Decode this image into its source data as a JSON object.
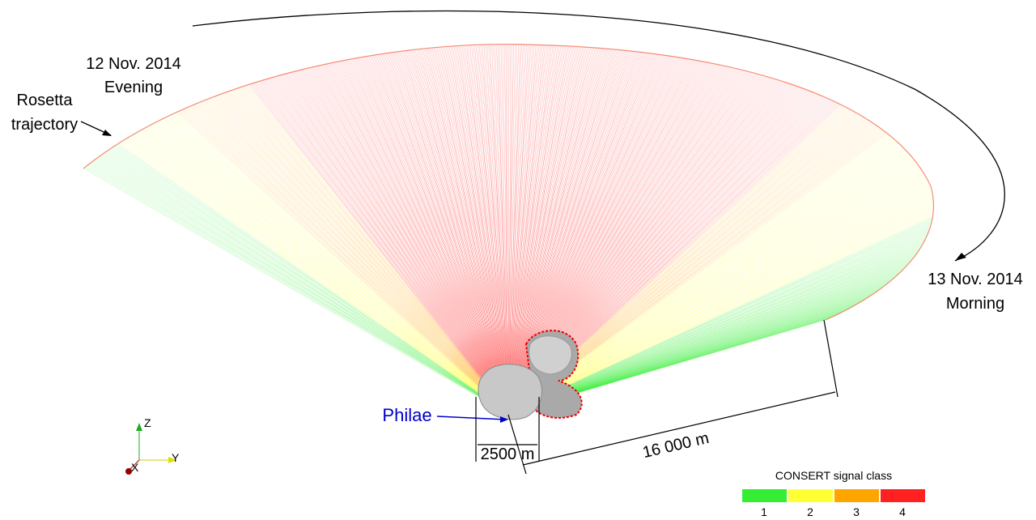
{
  "labels": {
    "start_date": "12 Nov. 2014",
    "start_time": "Evening",
    "trajectory_1": "Rosetta",
    "trajectory_2": "trajectory",
    "end_date": "13 Nov. 2014",
    "end_time": "Morning",
    "lander": "Philae",
    "width_dim": "2500 m",
    "distance_dim": "16 000 m"
  },
  "axes": {
    "z": "Z",
    "y": "Y",
    "x": "X"
  },
  "legend": {
    "title": "CONSERT signal class",
    "items": [
      {
        "label": "1",
        "color": "#33ee33"
      },
      {
        "label": "2",
        "color": "#ffff33"
      },
      {
        "label": "3",
        "color": "#ffa500"
      },
      {
        "label": "4",
        "color": "#ff2020"
      }
    ]
  }
}
